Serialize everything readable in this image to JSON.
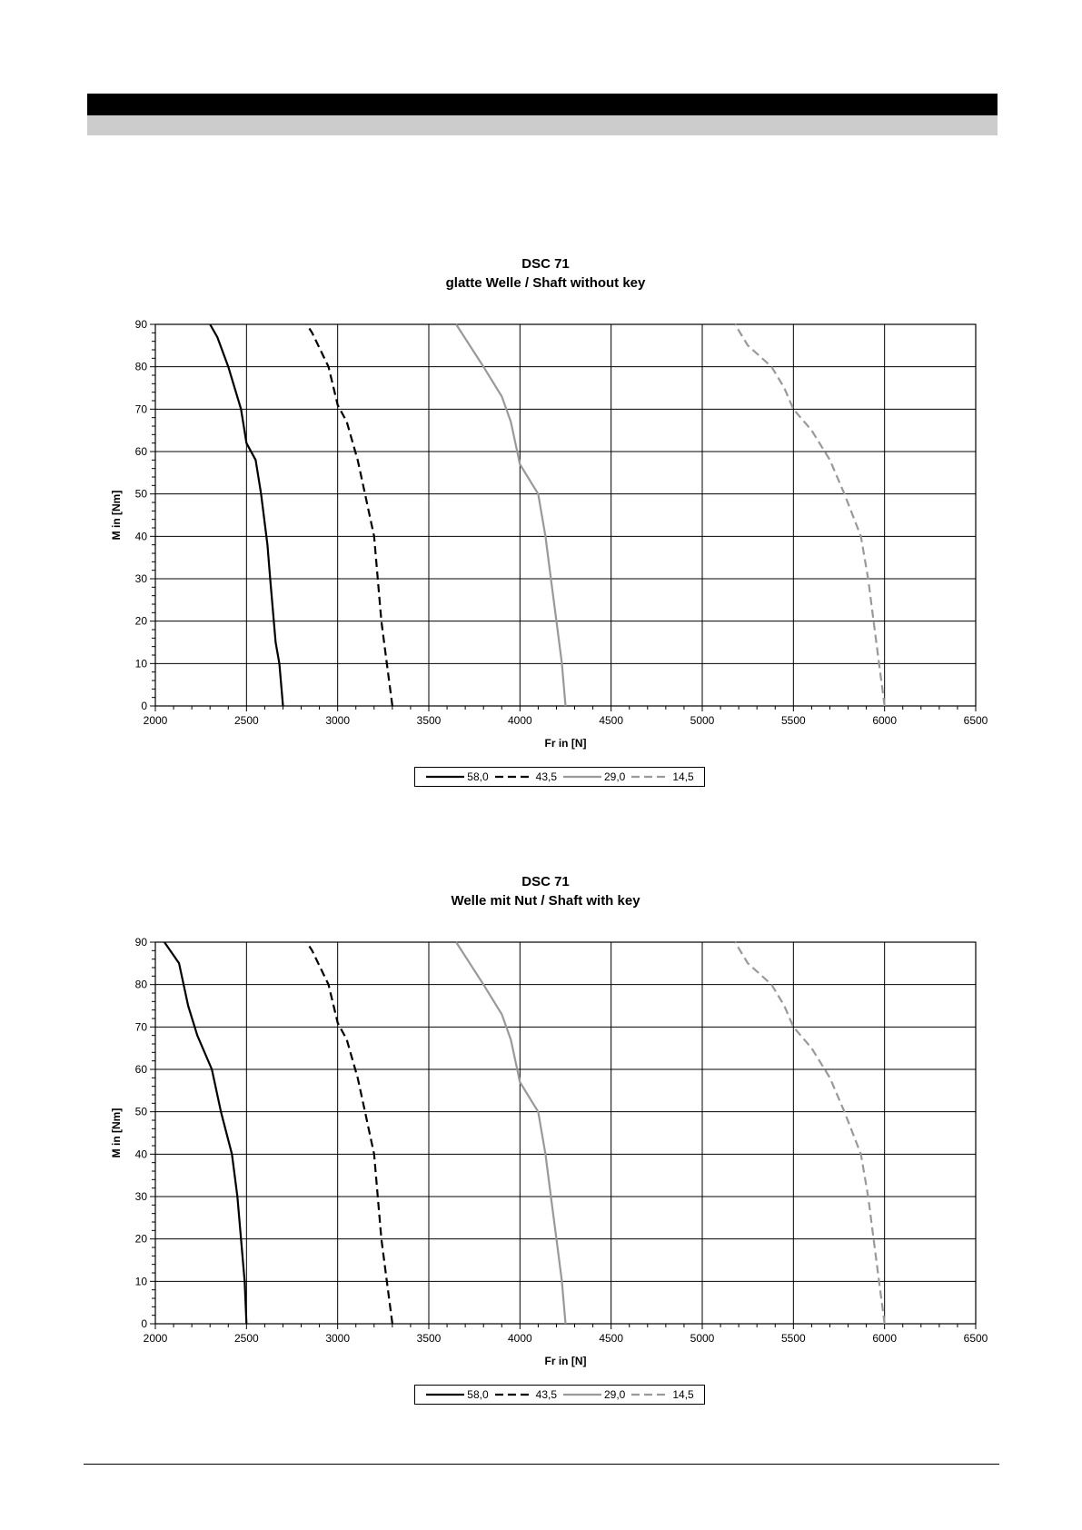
{
  "chart_data": [
    {
      "type": "line",
      "title": "DSC 71",
      "subtitle": "glatte Welle / Shaft without key",
      "xlabel": "Fr in [N]",
      "ylabel": "M in [Nm]",
      "xlim": [
        2000,
        6500
      ],
      "ylim": [
        0,
        90
      ],
      "xticks": [
        2000,
        2500,
        3000,
        3500,
        4000,
        4500,
        5000,
        5500,
        6000,
        6500
      ],
      "yticks": [
        0,
        10,
        20,
        30,
        40,
        50,
        60,
        70,
        80,
        90
      ],
      "grid": true,
      "legend_position": "bottom",
      "series": [
        {
          "name": "58,0",
          "color": "#000000",
          "dash": "solid",
          "points": [
            [
              2700,
              0
            ],
            [
              2680,
              10
            ],
            [
              2660,
              15
            ],
            [
              2650,
              20
            ],
            [
              2630,
              30
            ],
            [
              2615,
              38
            ],
            [
              2580,
              50
            ],
            [
              2550,
              58
            ],
            [
              2500,
              62
            ],
            [
              2470,
              70
            ],
            [
              2400,
              80
            ],
            [
              2340,
              87
            ],
            [
              2300,
              90
            ]
          ]
        },
        {
          "name": "43,5",
          "color": "#000000",
          "dash": "dashed",
          "points": [
            [
              3300,
              0
            ],
            [
              3270,
              10
            ],
            [
              3240,
              20
            ],
            [
              3220,
              30
            ],
            [
              3200,
              40
            ],
            [
              3150,
              50
            ],
            [
              3110,
              58
            ],
            [
              3050,
              67
            ],
            [
              3000,
              71
            ],
            [
              2950,
              80
            ],
            [
              2860,
              88
            ],
            [
              2830,
              90
            ]
          ]
        },
        {
          "name": "29,0",
          "color": "#999999",
          "dash": "solid",
          "points": [
            [
              4250,
              0
            ],
            [
              4230,
              10
            ],
            [
              4200,
              20
            ],
            [
              4170,
              30
            ],
            [
              4140,
              40
            ],
            [
              4100,
              50
            ],
            [
              4000,
              57
            ],
            [
              3950,
              67
            ],
            [
              3900,
              73
            ],
            [
              3800,
              80
            ],
            [
              3650,
              90
            ]
          ]
        },
        {
          "name": "14,5",
          "color": "#999999",
          "dash": "dashed",
          "points": [
            [
              6000,
              0
            ],
            [
              5970,
              10
            ],
            [
              5940,
              20
            ],
            [
              5910,
              30
            ],
            [
              5870,
              40
            ],
            [
              5780,
              50
            ],
            [
              5700,
              58
            ],
            [
              5600,
              65
            ],
            [
              5500,
              70
            ],
            [
              5450,
              75
            ],
            [
              5380,
              80
            ],
            [
              5250,
              85
            ],
            [
              5180,
              90
            ]
          ]
        }
      ]
    },
    {
      "type": "line",
      "title": "DSC 71",
      "subtitle": "Welle mit Nut / Shaft with key",
      "xlabel": "Fr in [N]",
      "ylabel": "M in [Nm]",
      "xlim": [
        2000,
        6500
      ],
      "ylim": [
        0,
        90
      ],
      "xticks": [
        2000,
        2500,
        3000,
        3500,
        4000,
        4500,
        5000,
        5500,
        6000,
        6500
      ],
      "yticks": [
        0,
        10,
        20,
        30,
        40,
        50,
        60,
        70,
        80,
        90
      ],
      "grid": true,
      "legend_position": "bottom",
      "series": [
        {
          "name": "58,0",
          "color": "#000000",
          "dash": "solid",
          "points": [
            [
              2500,
              0
            ],
            [
              2490,
              10
            ],
            [
              2470,
              20
            ],
            [
              2450,
              30
            ],
            [
              2420,
              40
            ],
            [
              2360,
              50
            ],
            [
              2310,
              60
            ],
            [
              2230,
              68
            ],
            [
              2180,
              75
            ],
            [
              2130,
              85
            ],
            [
              2050,
              90
            ]
          ]
        },
        {
          "name": "43,5",
          "color": "#000000",
          "dash": "dashed",
          "points": [
            [
              3300,
              0
            ],
            [
              3270,
              10
            ],
            [
              3240,
              20
            ],
            [
              3220,
              30
            ],
            [
              3200,
              40
            ],
            [
              3150,
              50
            ],
            [
              3110,
              58
            ],
            [
              3050,
              67
            ],
            [
              3000,
              71
            ],
            [
              2950,
              80
            ],
            [
              2860,
              88
            ],
            [
              2830,
              90
            ]
          ]
        },
        {
          "name": "29,0",
          "color": "#999999",
          "dash": "solid",
          "points": [
            [
              4250,
              0
            ],
            [
              4230,
              10
            ],
            [
              4200,
              20
            ],
            [
              4170,
              30
            ],
            [
              4140,
              40
            ],
            [
              4100,
              50
            ],
            [
              4000,
              57
            ],
            [
              3950,
              67
            ],
            [
              3900,
              73
            ],
            [
              3800,
              80
            ],
            [
              3650,
              90
            ]
          ]
        },
        {
          "name": "14,5",
          "color": "#999999",
          "dash": "dashed",
          "points": [
            [
              6000,
              0
            ],
            [
              5970,
              10
            ],
            [
              5940,
              20
            ],
            [
              5910,
              30
            ],
            [
              5870,
              40
            ],
            [
              5780,
              50
            ],
            [
              5700,
              58
            ],
            [
              5600,
              65
            ],
            [
              5500,
              70
            ],
            [
              5450,
              75
            ],
            [
              5380,
              80
            ],
            [
              5250,
              85
            ],
            [
              5180,
              90
            ]
          ]
        }
      ]
    }
  ]
}
